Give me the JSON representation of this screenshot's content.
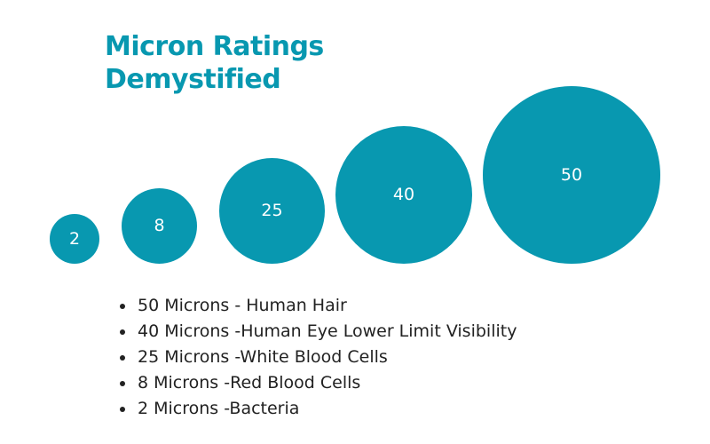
{
  "title": {
    "line1": "Micron Ratings",
    "line2": "Demystified"
  },
  "colors": {
    "accent": "#0898b0",
    "circle_text": "#ffffff",
    "list_text": "#222222"
  },
  "circles": [
    {
      "label": "2"
    },
    {
      "label": "8"
    },
    {
      "label": "25"
    },
    {
      "label": "40"
    },
    {
      "label": "50"
    }
  ],
  "legend": [
    {
      "text": "50 Microns - Human Hair"
    },
    {
      "text": "40 Microns -Human Eye Lower Limit Visibility"
    },
    {
      "text": "25 Microns -White Blood Cells"
    },
    {
      "text": "8 Microns -Red Blood Cells"
    },
    {
      "text": "2 Microns -Bacteria"
    }
  ]
}
